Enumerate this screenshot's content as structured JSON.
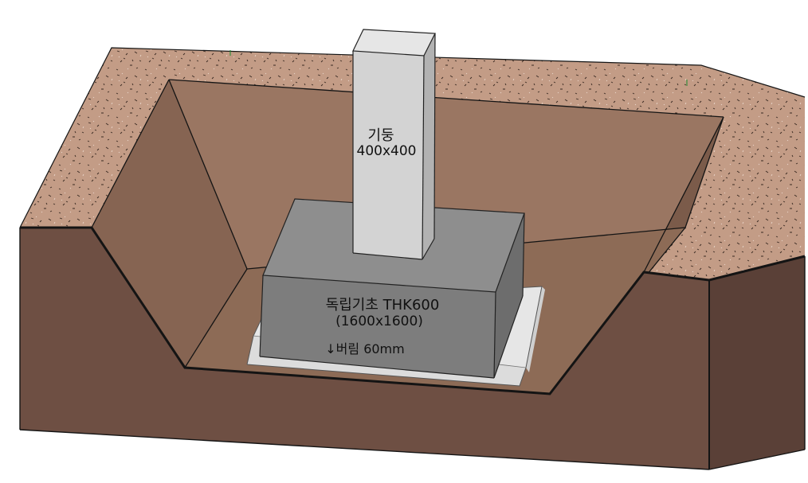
{
  "labels": {
    "column_name": "기둥",
    "column_size": "400x400",
    "footing_name": "독립기초 THK600",
    "footing_size": "(1600x1600)",
    "lean_concrete": "↓버림 60mm"
  },
  "colors": {
    "soil_top": "#c39c86",
    "soil_cut": "#6e4f43",
    "pit_floor": "#8d6b56",
    "pit_wall_light": "#9a7662",
    "pit_wall_dark": "#805f4d",
    "concrete_top": "#8e8e8e",
    "concrete_front": "#7d7d7d",
    "concrete_side": "#6d6d6d",
    "column_front": "#d3d3d3",
    "column_side": "#b2b2b2",
    "lean_slab": "#e6e6e6",
    "edge": "#141414"
  }
}
